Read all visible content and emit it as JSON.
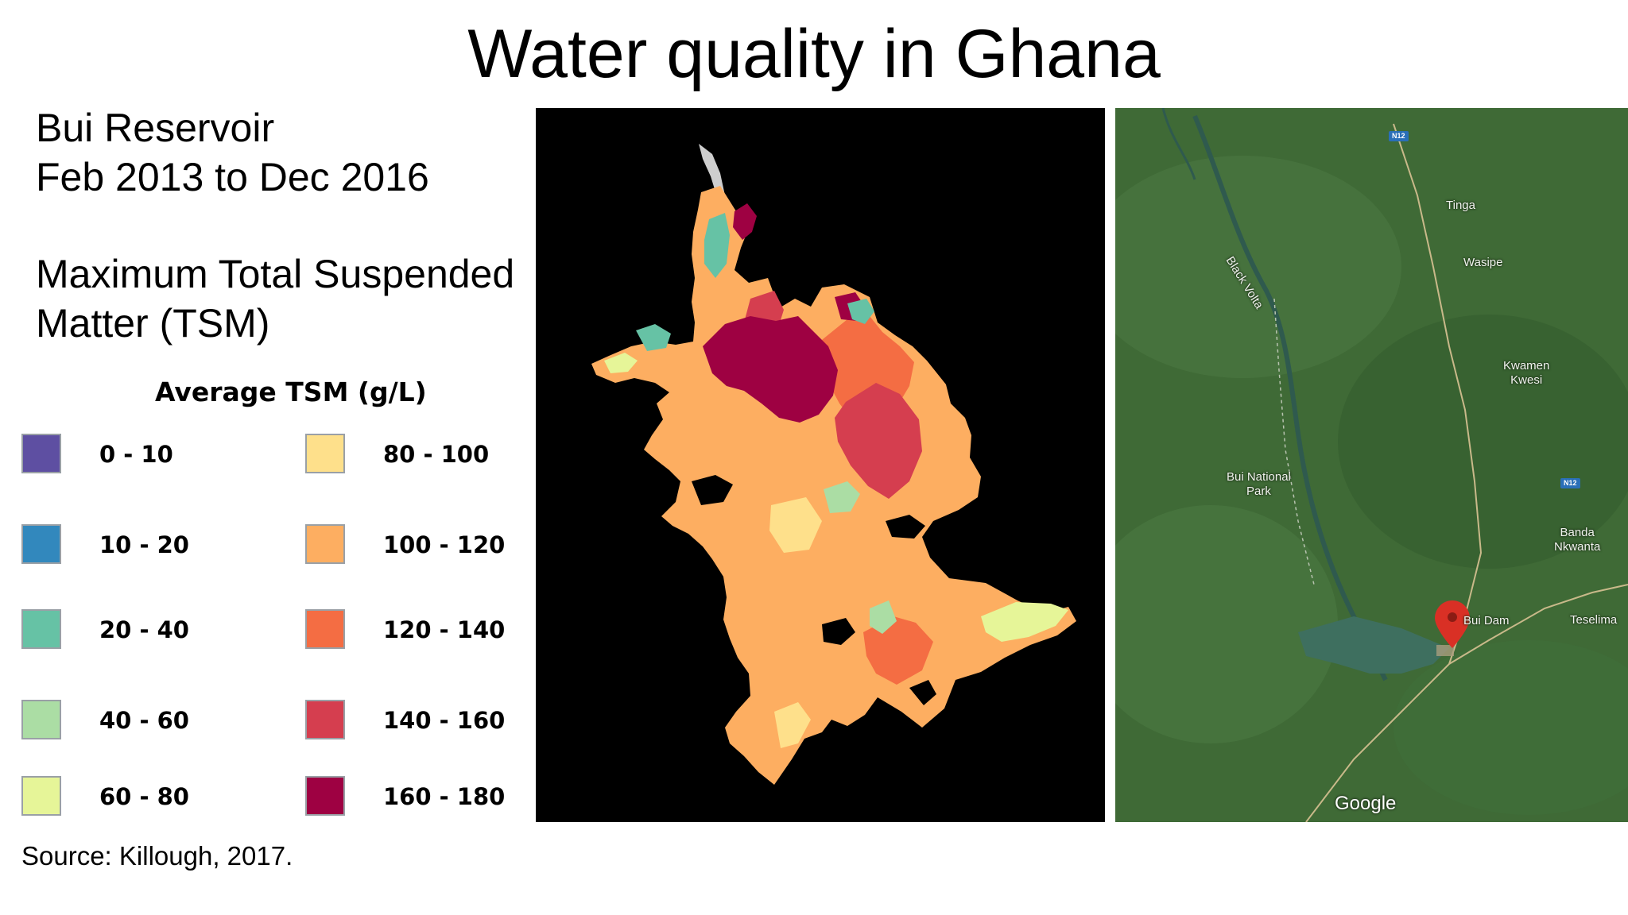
{
  "slide": {
    "title": "Water quality in Ghana",
    "subtitle_line1": "Bui Reservoir",
    "subtitle_line2": "Feb 2013 to Dec 2016",
    "metric_line1": "Maximum Total Suspended",
    "metric_line2": "Matter (TSM)",
    "source": "Source: Killough, 2017."
  },
  "legend": {
    "title": "Average TSM (g/L)",
    "items": [
      {
        "label": "0 - 10",
        "color": "#5e4fa2"
      },
      {
        "label": "10 - 20",
        "color": "#3288bd"
      },
      {
        "label": "20 - 40",
        "color": "#66c2a5"
      },
      {
        "label": "40 - 60",
        "color": "#abdda4"
      },
      {
        "label": "60 - 80",
        "color": "#e6f598"
      },
      {
        "label": "80 - 100",
        "color": "#fee08b"
      },
      {
        "label": "100 - 120",
        "color": "#fdae61"
      },
      {
        "label": "120 - 140",
        "color": "#f46d43"
      },
      {
        "label": "140 - 160",
        "color": "#d53e4f"
      },
      {
        "label": "160 - 180",
        "color": "#9e0142"
      }
    ]
  },
  "map": {
    "labels": {
      "tinga": "Tinga",
      "wasipe": "Wasipe",
      "kwamen_line1": "Kwamen",
      "kwamen_line2": "Kwesi",
      "park_line1": "Bui National",
      "park_line2": "Park",
      "banda_line1": "Banda",
      "banda_line2": "Nkwanta",
      "bui_dam": "Bui Dam",
      "teselima": "Teselima",
      "black_volta": "Black Volta",
      "road": "N12",
      "google": "Google"
    },
    "colors": {
      "terrain": "#3f6a36",
      "water": "#3e6f5f",
      "marker": "#d93025"
    }
  }
}
